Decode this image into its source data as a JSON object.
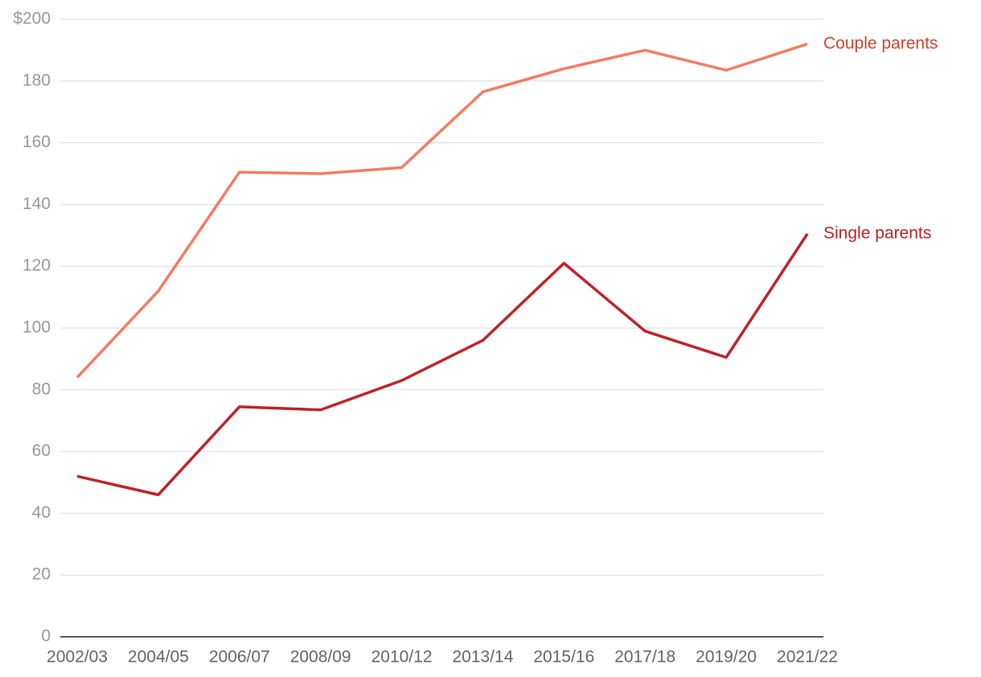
{
  "chart_data": {
    "type": "line",
    "categories": [
      "2002/03",
      "2004/05",
      "2006/07",
      "2008/09",
      "2010/12",
      "2013/14",
      "2015/16",
      "2017/18",
      "2019/20",
      "2021/22"
    ],
    "series": [
      {
        "name": "Couple parents",
        "color": "#f47c64",
        "label_color": "#d4442e",
        "values": [
          84,
          112,
          150.5,
          150,
          152,
          176.5,
          184,
          190,
          183.5,
          192
        ]
      },
      {
        "name": "Single parents",
        "color": "#c0232a",
        "label_color": "#c0232a",
        "values": [
          52,
          46,
          74.5,
          73.5,
          83,
          96,
          121,
          99,
          90.5,
          130.5
        ]
      }
    ],
    "ylim": [
      0,
      200
    ],
    "yticks": [
      0,
      20,
      40,
      60,
      80,
      100,
      120,
      140,
      160,
      180,
      {
        "value": 200,
        "label": "$200"
      }
    ],
    "grid": true
  }
}
